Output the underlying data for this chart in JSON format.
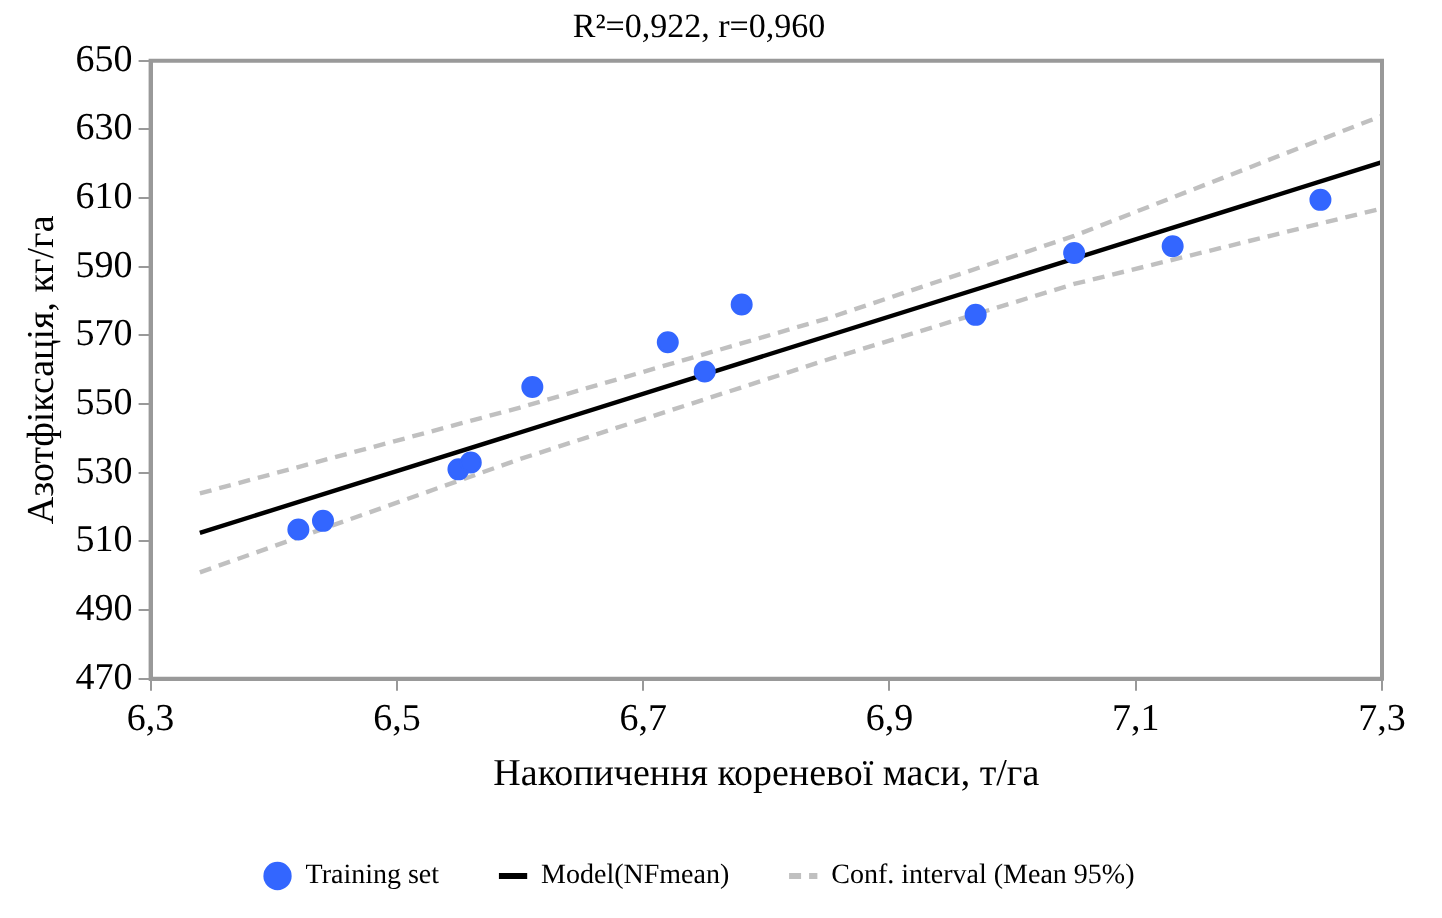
{
  "chart_data": {
    "type": "scatter",
    "title": "R²=0,922, r=0,960",
    "xlabel": "Накопичення кореневої маси, т/га",
    "ylabel": "Азотфіксація, кг/га",
    "xlim": [
      6.3,
      7.3
    ],
    "xticks": [
      {
        "value": 6.3,
        "label": "6,3"
      },
      {
        "value": 6.5,
        "label": "6,5"
      },
      {
        "value": 6.7,
        "label": "6,7"
      },
      {
        "value": 6.9,
        "label": "6,9"
      },
      {
        "value": 7.1,
        "label": "7,1"
      },
      {
        "value": 7.3,
        "label": "7,3"
      }
    ],
    "ylim": [
      470,
      650
    ],
    "yticks": [
      470,
      490,
      510,
      530,
      550,
      570,
      590,
      610,
      630,
      650
    ],
    "grid": false,
    "legend": "bottom",
    "series": [
      {
        "name": "Training set",
        "type": "scatter",
        "marker": "circle",
        "color": "#3366ff",
        "x": [
          6.42,
          6.44,
          6.55,
          6.56,
          6.61,
          6.72,
          6.75,
          6.78,
          6.97,
          7.05,
          7.13,
          7.25
        ],
        "values": [
          513.5,
          516,
          531,
          533,
          555,
          568,
          559.5,
          579,
          576,
          594,
          596,
          609.5
        ]
      },
      {
        "name": "Model(NFmean)",
        "type": "line",
        "marker": "none",
        "line_style": "solid",
        "color": "#000000",
        "x": [
          6.34,
          7.3
        ],
        "values": [
          512.5,
          620.5
        ]
      },
      {
        "name": "Conf. interval (Mean 95%)",
        "type": "line",
        "marker": "none",
        "line_style": "dashed",
        "color": "#c0c0c0",
        "x": [
          6.34,
          6.6,
          6.85,
          7.05,
          7.3
        ],
        "values": [
          524,
          549,
          575,
          599,
          634
        ]
      },
      {
        "type": "line",
        "marker": "none",
        "line_style": "dashed",
        "color": "#c0c0c0",
        "x": [
          6.34,
          6.6,
          6.85,
          7.05,
          7.3
        ],
        "values": [
          501,
          534,
          563,
          585,
          607
        ]
      }
    ]
  }
}
